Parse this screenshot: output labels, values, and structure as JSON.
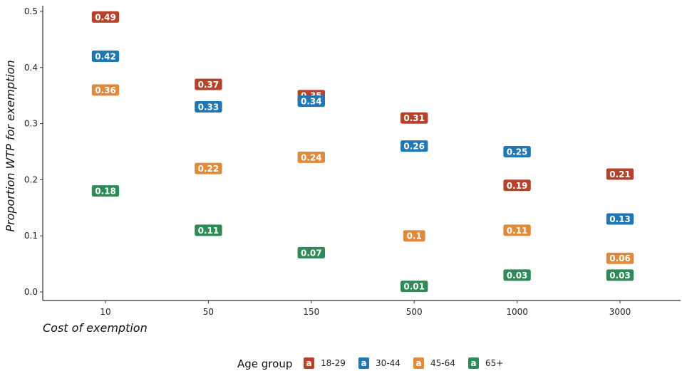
{
  "chart_data": {
    "type": "scatter",
    "xlabel": "Cost of exemption",
    "ylabel": "Proportion WTP for exemption",
    "categories": [
      "10",
      "50",
      "150",
      "500",
      "1000",
      "3000"
    ],
    "ylim": [
      0,
      0.5
    ],
    "yticks": [
      "0.0",
      "0.1",
      "0.2",
      "0.3",
      "0.4",
      "0.5"
    ],
    "grid": false,
    "legend": {
      "title": "Age group",
      "placement": "bottom",
      "key_glyph": "a"
    },
    "series": [
      {
        "name": "18-29",
        "color": "#b5432c",
        "values": [
          0.49,
          0.37,
          0.35,
          0.31,
          0.19,
          0.21
        ],
        "labels": [
          "0.49",
          "0.37",
          "0.35",
          "0.31",
          "0.19",
          "0.21"
        ]
      },
      {
        "name": "30-44",
        "color": "#1f77b4",
        "values": [
          0.42,
          0.33,
          0.34,
          0.26,
          0.25,
          0.13
        ],
        "labels": [
          "0.42",
          "0.33",
          "0.34",
          "0.26",
          "0.25",
          "0.13"
        ]
      },
      {
        "name": "45-64",
        "color": "#e08a3c",
        "values": [
          0.36,
          0.22,
          0.24,
          0.1,
          0.11,
          0.06
        ],
        "labels": [
          "0.36",
          "0.22",
          "0.24",
          "0.1",
          "0.11",
          "0.06"
        ]
      },
      {
        "name": "65+",
        "color": "#2e8b57",
        "values": [
          0.18,
          0.11,
          0.07,
          0.01,
          0.03,
          0.03
        ],
        "labels": [
          "0.18",
          "0.11",
          "0.07",
          "0.01",
          "0.03",
          "0.03"
        ]
      }
    ]
  }
}
